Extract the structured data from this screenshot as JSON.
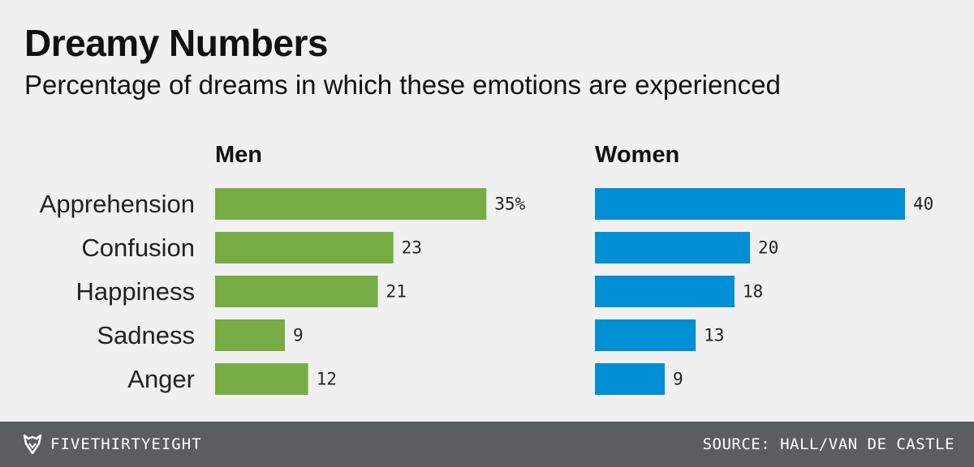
{
  "title": "Dreamy Numbers",
  "subtitle": "Percentage of dreams in which these emotions are experienced",
  "footer": {
    "brand": "FIVETHIRTYEIGHT",
    "source": "SOURCE: HALL/VAN DE CASTLE"
  },
  "colors": {
    "men": "#77ab43",
    "women": "#008fd5",
    "background": "#f0f0f0",
    "footer": "#5b5e5f"
  },
  "chart_data": {
    "type": "bar",
    "orientation": "horizontal",
    "categories": [
      "Apprehension",
      "Confusion",
      "Happiness",
      "Sadness",
      "Anger"
    ],
    "series": [
      {
        "name": "Men",
        "values": [
          35,
          23,
          21,
          9,
          12
        ],
        "labels": [
          "35%",
          "23",
          "21",
          "9",
          "12"
        ]
      },
      {
        "name": "Women",
        "values": [
          40,
          20,
          18,
          13,
          9
        ],
        "labels": [
          "40",
          "20",
          "18",
          "13",
          "9"
        ]
      }
    ],
    "unit": "%",
    "xlim": [
      0,
      40
    ],
    "grid": false,
    "legend": "none"
  }
}
